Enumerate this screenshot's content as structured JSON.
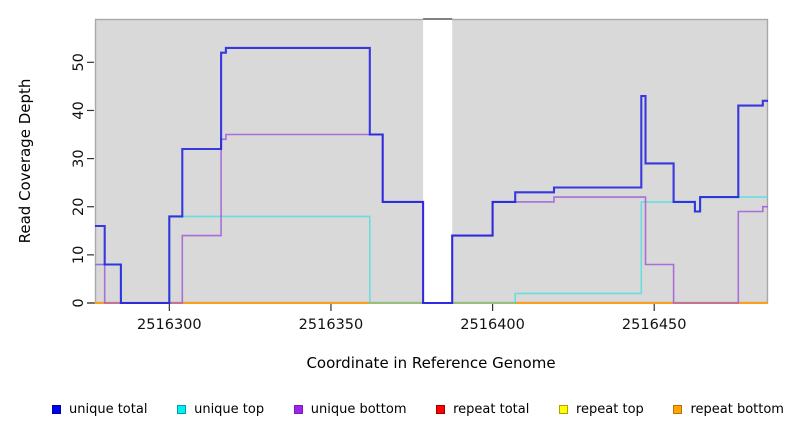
{
  "chart_data": {
    "type": "line",
    "subtype": "step",
    "title": "",
    "xlabel": "Coordinate in Reference Genome",
    "ylabel": "Read Coverage Depth",
    "xlim": [
      2516277,
      2516485.2
    ],
    "ylim": [
      0,
      59
    ],
    "x_ticks": [
      2516300,
      2516350,
      2516400,
      2516450
    ],
    "y_ticks": [
      0,
      10,
      20,
      30,
      40,
      50
    ],
    "grid": false,
    "plot_bg": "#d9d9d9",
    "border_color": "#a8a8a8",
    "gap_border_color": "#6e6e6e",
    "tick_color": "#333333",
    "tick_label_color": "#111111",
    "axis_label_color": "#000000",
    "missing_region": {
      "x_start": 2516378.5,
      "x_end": 2516387.5
    },
    "series": [
      {
        "id": "repeat-total",
        "name": "repeat total",
        "color": "#e03030",
        "width": 1.5,
        "opacity": 1,
        "segments": [
          {
            "points": [
              [
                2516277,
                0
              ]
            ],
            "end": 2516378.5
          },
          {
            "points": [
              [
                2516387.5,
                0
              ]
            ],
            "end": 2516485.2
          }
        ]
      },
      {
        "id": "repeat-top",
        "name": "repeat top",
        "color": "#f5e626",
        "width": 1.5,
        "opacity": 1,
        "segments": [
          {
            "points": [
              [
                2516277,
                0
              ]
            ],
            "end": 2516378.5
          },
          {
            "points": [
              [
                2516387.5,
                0
              ]
            ],
            "end": 2516485.2
          }
        ]
      },
      {
        "id": "repeat-bottom",
        "name": "repeat bottom",
        "color": "#ff9e1a",
        "width": 2,
        "opacity": 1,
        "segments": [
          {
            "points": [
              [
                2516277,
                0
              ]
            ],
            "end": 2516378.5
          },
          {
            "points": [
              [
                2516387.5,
                0
              ]
            ],
            "end": 2516485.2
          }
        ]
      },
      {
        "id": "unique-top",
        "name": "unique top",
        "color": "#2fe0e0",
        "width": 1.6,
        "opacity": 0.66,
        "segments": [
          {
            "points": [
              [
                2516277,
                8
              ],
              [
                2516285,
                0
              ],
              [
                2516300,
                18
              ],
              [
                2516362,
                0
              ]
            ],
            "end": 2516378.5
          },
          {
            "points": [
              [
                2516387.5,
                0
              ],
              [
                2516407,
                2
              ],
              [
                2516446,
                21
              ],
              [
                2516462.6,
                19
              ],
              [
                2516464.2,
                22
              ]
            ],
            "end": 2516485.2
          }
        ]
      },
      {
        "id": "unique-bottom",
        "name": "unique bottom",
        "color": "#a05cd8",
        "width": 1.6,
        "opacity": 0.85,
        "segments": [
          {
            "points": [
              [
                2516277,
                8
              ],
              [
                2516280,
                0
              ],
              [
                2516304,
                14
              ],
              [
                2516316,
                34
              ],
              [
                2516317.5,
                35
              ],
              [
                2516366,
                21
              ],
              [
                2516378.5,
                0
              ],
              [
                2516387.5,
                14
              ],
              [
                2516400,
                21
              ],
              [
                2516419,
                22
              ],
              [
                2516447.3,
                8
              ],
              [
                2516456,
                0
              ],
              [
                2516476,
                19
              ],
              [
                2516483.6,
                20
              ]
            ],
            "end": 2516485.2
          }
        ]
      },
      {
        "id": "unique-total",
        "name": "unique total",
        "color": "#1b1bdf",
        "width": 2.1,
        "opacity": 0.85,
        "segments": [
          {
            "points": [
              [
                2516277,
                16
              ],
              [
                2516280,
                8
              ],
              [
                2516285,
                0
              ],
              [
                2516300,
                18
              ],
              [
                2516304,
                32
              ],
              [
                2516316,
                52
              ],
              [
                2516317.5,
                53
              ],
              [
                2516362,
                35
              ],
              [
                2516366,
                21
              ],
              [
                2516378.5,
                0
              ],
              [
                2516387.5,
                14
              ],
              [
                2516400,
                21
              ],
              [
                2516407,
                23
              ],
              [
                2516419,
                24
              ],
              [
                2516446,
                43
              ],
              [
                2516447.3,
                29
              ],
              [
                2516456,
                21
              ],
              [
                2516462.6,
                19
              ],
              [
                2516464.2,
                22
              ],
              [
                2516476,
                41
              ],
              [
                2516483.6,
                42
              ]
            ],
            "end": 2516485.2
          }
        ]
      }
    ],
    "legend": [
      {
        "label": "unique total",
        "fill": "#0000f0",
        "border": "#0000a0"
      },
      {
        "label": "unique top",
        "fill": "#00eef5",
        "border": "#00a0a8"
      },
      {
        "label": "unique bottom",
        "fill": "#a020f0",
        "border": "#7a1fb5"
      },
      {
        "label": "repeat total",
        "fill": "#ff0000",
        "border": "#a00000"
      },
      {
        "label": "repeat top",
        "fill": "#ffff00",
        "border": "#b0a000"
      },
      {
        "label": "repeat bottom",
        "fill": "#ffa500",
        "border": "#c07000"
      }
    ],
    "legend_position": "bottom"
  }
}
